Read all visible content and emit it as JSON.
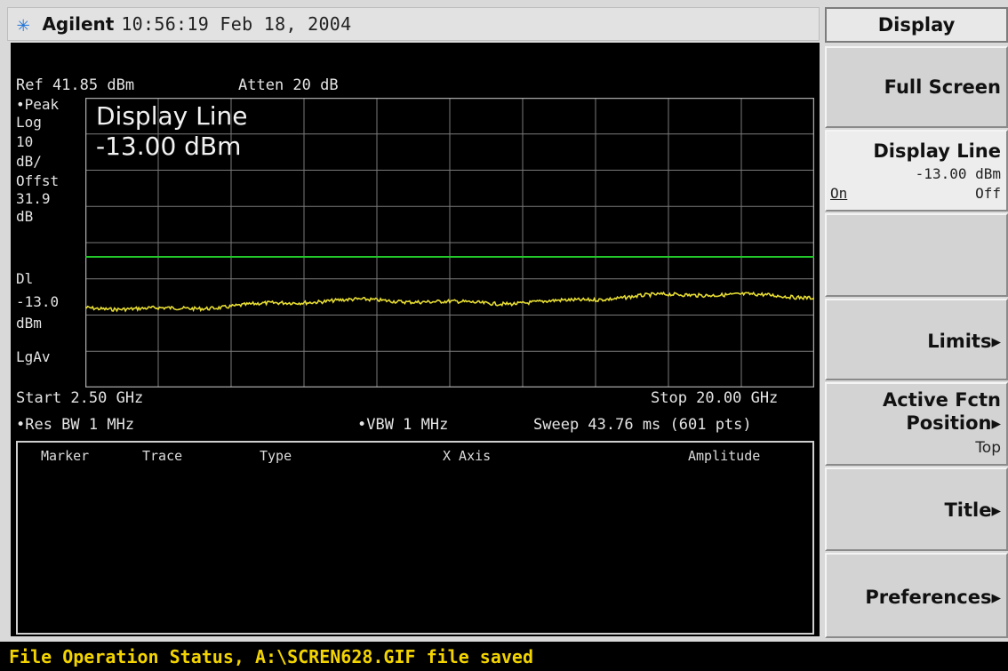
{
  "header": {
    "logo_icon": "agilent-spark-icon",
    "brand": "Agilent",
    "datetime": "10:56:19  Feb 18, 2004"
  },
  "screen": {
    "ref": "Ref 41.85 dBm",
    "atten": "Atten 20 dB",
    "left_labels": [
      "•Peak",
      "Log",
      "10",
      "dB/",
      "Offst",
      "31.9",
      "dB",
      "Dl",
      "-13.0",
      "dBm",
      "LgAv"
    ],
    "active_function_title": "Display Line",
    "active_function_value": "-13.00 dBm",
    "start": "Start 2.50 GHz",
    "stop": "Stop 20.00 GHz",
    "res_bw": "•Res BW 1 MHz",
    "vbw": "•VBW 1 MHz",
    "sweep": "Sweep 43.76 ms (601 pts)",
    "marker_table_headers": [
      "Marker",
      "Trace",
      "Type",
      "X Axis",
      "Amplitude"
    ],
    "display_line_color": "#22c82a",
    "trace_color": "#e6dc33"
  },
  "softkeys": {
    "title": "Display",
    "items": [
      {
        "label": "Full Screen"
      },
      {
        "label": "Display Line",
        "value": "-13.00 dBm",
        "on": "On",
        "off": "Off"
      },
      {
        "label": ""
      },
      {
        "label": "Limits▸"
      },
      {
        "label": "Active Fctn",
        "label2": "Position▸",
        "value": "Top"
      },
      {
        "label": "Title▸"
      },
      {
        "label": "Preferences▸"
      }
    ]
  },
  "status": {
    "text": "File Operation Status, A:\\SCREN628.GIF file saved"
  }
}
